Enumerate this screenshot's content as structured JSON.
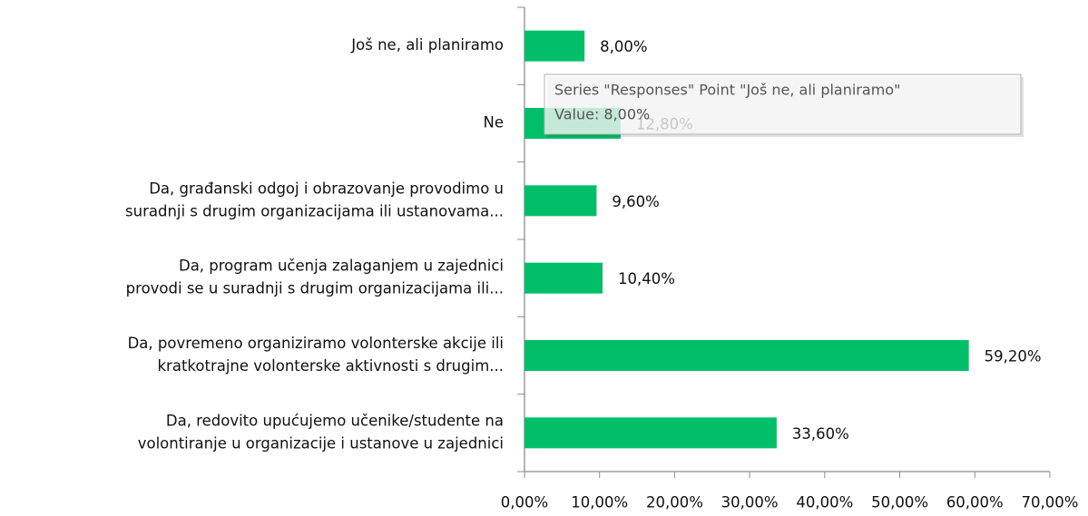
{
  "chart_data": {
    "type": "bar",
    "orientation": "horizontal",
    "series_name": "Responses",
    "categories": [
      [
        "Još ne, ali planiramo"
      ],
      [
        "Ne"
      ],
      [
        "Da, građanski odgoj i obrazovanje provodimo u",
        "suradnji s drugim organizacijama ili ustanovama..."
      ],
      [
        "Da, program učenja zalaganjem u zajednici",
        "provodi se u suradnji s drugim organizacijama ili..."
      ],
      [
        "Da, povremeno organiziramo volonterske akcije ili",
        "kratkotrajne volonterske aktivnosti s drugim..."
      ],
      [
        "Da, redovito upućujemo učenike/studente na",
        "volontiranje u organizacije i ustanove u zajednici"
      ]
    ],
    "values": [
      8,
      12.8,
      9.6,
      10.4,
      59.2,
      33.6
    ],
    "value_labels": [
      "8,00%",
      "12,80%",
      "9,60%",
      "10,40%",
      "59,20%",
      "33,60%"
    ],
    "color": "#00bf68",
    "xlim": [
      0,
      70
    ],
    "xticks": [
      {
        "value": 0,
        "label": "0,00%"
      },
      {
        "value": 10,
        "label": "10,00%"
      },
      {
        "value": 20,
        "label": "20,00%"
      },
      {
        "value": 30,
        "label": "30,00%"
      },
      {
        "value": 40,
        "label": "40,00%"
      },
      {
        "value": 50,
        "label": "50,00%"
      },
      {
        "value": 60,
        "label": "60,00%"
      },
      {
        "value": 70,
        "label": "70,00%"
      }
    ],
    "tooltip": {
      "title": "Series \"Responses\" Point \"Još ne, ali planiramo\"",
      "value_text": "Value: 8,00%"
    }
  }
}
